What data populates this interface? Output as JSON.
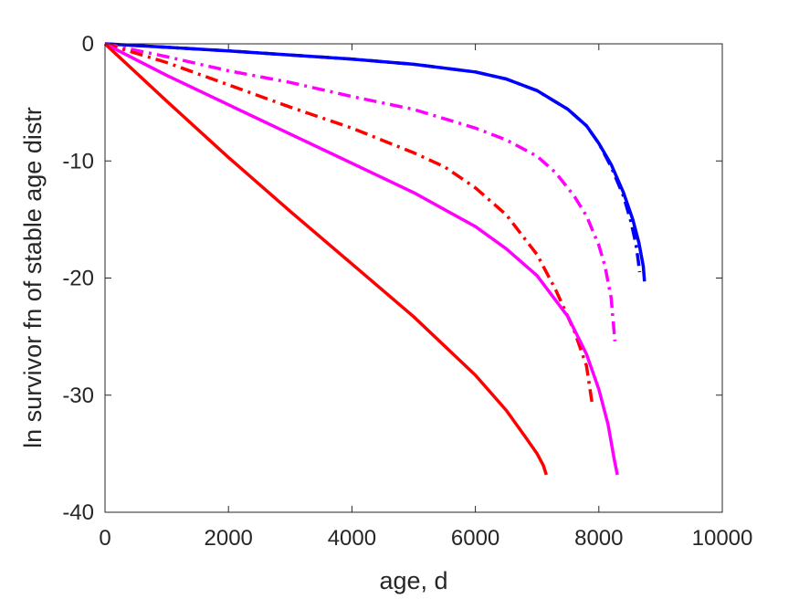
{
  "chart_data": {
    "type": "line",
    "title": "",
    "xlabel": "age, d",
    "ylabel": "ln survivor fn of stable age distr",
    "xlim": [
      0,
      10000
    ],
    "ylim": [
      -40,
      0
    ],
    "xticks": [
      0,
      2000,
      4000,
      6000,
      8000,
      10000
    ],
    "xtick_labels": [
      "0",
      "2000",
      "4000",
      "6000",
      "8000",
      "10000"
    ],
    "yticks": [
      0,
      -10,
      -20,
      -30,
      -40
    ],
    "ytick_labels": [
      "0",
      "-10",
      "-20",
      "-30",
      "-40"
    ],
    "grid": false,
    "legend": "none",
    "series": [
      {
        "color": "#0000ff",
        "style": "solid",
        "x": [
          0,
          1000,
          2000,
          3000,
          4000,
          5000,
          6000,
          6500,
          7000,
          7500,
          7800,
          8000,
          8200,
          8400,
          8550,
          8650,
          8720,
          8740
        ],
        "y": [
          0,
          -0.3,
          -0.6,
          -0.95,
          -1.3,
          -1.75,
          -2.4,
          -3.0,
          -4.0,
          -5.6,
          -7.0,
          -8.5,
          -10.3,
          -12.7,
          -15.0,
          -17.0,
          -19.0,
          -20.3
        ]
      },
      {
        "color": "#0000ff",
        "style": "dashdot",
        "x": [
          0,
          1000,
          2000,
          3000,
          4000,
          5000,
          6000,
          6500,
          7000,
          7500,
          7800,
          8000,
          8200,
          8400,
          8520,
          8600,
          8640,
          8660
        ],
        "y": [
          0,
          -0.3,
          -0.6,
          -0.95,
          -1.3,
          -1.75,
          -2.4,
          -3.0,
          -4.0,
          -5.6,
          -7.0,
          -8.5,
          -10.5,
          -13.0,
          -15.2,
          -17.1,
          -18.6,
          -19.5
        ]
      },
      {
        "color": "#ff00ff",
        "style": "dashdot",
        "x": [
          0,
          1000,
          2000,
          3000,
          4000,
          5000,
          6000,
          6500,
          7000,
          7300,
          7600,
          7800,
          8000,
          8100,
          8200,
          8260
        ],
        "y": [
          0,
          -1.1,
          -2.3,
          -3.3,
          -4.5,
          -5.6,
          -7.2,
          -8.2,
          -9.6,
          -11.0,
          -13.0,
          -14.7,
          -17.2,
          -19.0,
          -21.7,
          -25.4
        ]
      },
      {
        "color": "#ff0000",
        "style": "dashdot",
        "x": [
          0,
          1000,
          2000,
          3000,
          4000,
          5000,
          5500,
          6000,
          6500,
          7000,
          7300,
          7600,
          7800,
          7900
        ],
        "y": [
          0,
          -1.6,
          -3.5,
          -5.4,
          -7.2,
          -9.3,
          -10.5,
          -12.3,
          -14.6,
          -18.0,
          -21.0,
          -24.5,
          -27.5,
          -31.0
        ]
      },
      {
        "color": "#ff00ff",
        "style": "solid",
        "x": [
          0,
          1000,
          2000,
          3000,
          4000,
          5000,
          6000,
          6500,
          7000,
          7500,
          7800,
          8000,
          8150,
          8250,
          8300
        ],
        "y": [
          0,
          -2.7,
          -5.2,
          -7.7,
          -10.2,
          -12.7,
          -15.6,
          -17.5,
          -19.8,
          -23.3,
          -26.5,
          -29.5,
          -32.5,
          -35.5,
          -36.8
        ]
      },
      {
        "color": "#ff0000",
        "style": "solid",
        "x": [
          0,
          1000,
          2000,
          3000,
          4000,
          5000,
          6000,
          6500,
          6800,
          7000,
          7100,
          7150
        ],
        "y": [
          0,
          -4.9,
          -9.7,
          -14.3,
          -18.8,
          -23.3,
          -28.3,
          -31.3,
          -33.5,
          -35.0,
          -36.0,
          -36.8
        ]
      }
    ]
  }
}
